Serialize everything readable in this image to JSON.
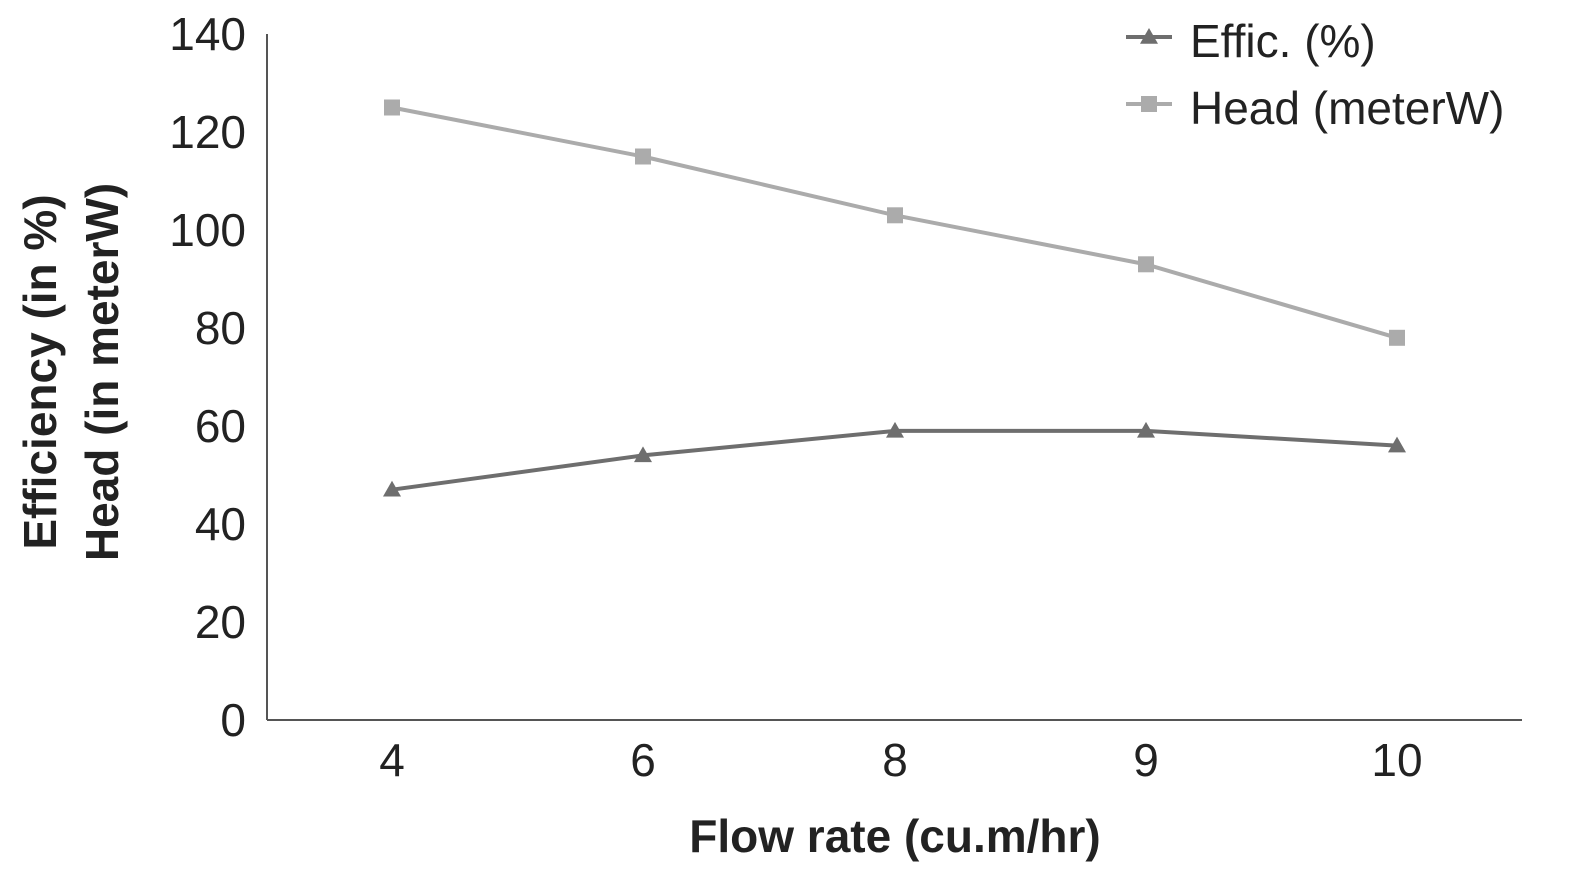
{
  "chart_data": {
    "type": "line",
    "categories": [
      "4",
      "6",
      "8",
      "9",
      "10"
    ],
    "series": [
      {
        "name": "Effic. (%)",
        "values": [
          47,
          54,
          59,
          59,
          56
        ],
        "color": "#6e6e6e",
        "marker": "triangle"
      },
      {
        "name": "Head (meterW)",
        "values": [
          125,
          115,
          103,
          93,
          78
        ],
        "color": "#ababab",
        "marker": "square"
      }
    ],
    "xlabel": "Flow rate (cu.m/hr)",
    "ylabel_lines": [
      "Efficiency (in %)",
      "Head (in meterW)"
    ],
    "ylim": [
      0,
      140
    ],
    "yticks": [
      "0",
      "20",
      "40",
      "60",
      "80",
      "100",
      "120",
      "140"
    ],
    "grid": false,
    "legend_position": "top-right"
  }
}
